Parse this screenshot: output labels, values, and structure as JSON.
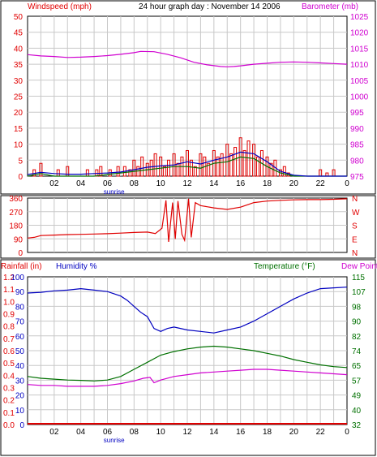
{
  "colors": {
    "red": "#e00000",
    "magenta": "#d000d0",
    "blue": "#0000c0",
    "green": "#007000",
    "black": "#000000",
    "grid": "#c8c8c8",
    "frame": "#000000"
  },
  "header": {
    "windspeed_label": "Windspeed (mph)",
    "title": "24 hour graph day : November 14 2006",
    "barometer_label": "Barometer (mb)"
  },
  "hours": [
    "02",
    "04",
    "06",
    "08",
    "10",
    "12",
    "14",
    "16",
    "18",
    "20",
    "22",
    "0"
  ],
  "sunrise_label": "sunrise",
  "chart_data": [
    {
      "type": "line",
      "title": "24 hour graph day : November 14 2006",
      "ylabel": "Windspeed (mph)",
      "ylabel_right": "Barometer (mb)",
      "y_ticks_left": [
        "0",
        "5",
        "10",
        "15",
        "20",
        "25",
        "30",
        "35",
        "40",
        "45",
        "50"
      ],
      "y_ticks_right": [
        "975",
        "980",
        "985",
        "990",
        "995",
        "1000",
        "1005",
        "1010",
        "1015",
        "1020",
        "1025"
      ],
      "ylim": [
        0,
        50
      ],
      "ylim_right": [
        975,
        1025
      ],
      "xlim": [
        0,
        24
      ],
      "grid": true,
      "series": [
        {
          "axis": "right",
          "color": "#d000d0",
          "x": [
            0,
            1,
            2,
            3,
            4,
            5,
            6,
            7,
            8,
            8.5,
            9.5,
            10.5,
            11.5,
            12.5,
            13.5,
            14.5,
            15,
            15.5,
            16,
            17,
            18,
            19,
            20,
            21,
            22,
            23,
            24
          ],
          "values": [
            1013,
            1012.6,
            1012.4,
            1012.1,
            1012.2,
            1012.4,
            1012.7,
            1013.1,
            1013.6,
            1014,
            1013.9,
            1013.1,
            1012,
            1010.6,
            1009.8,
            1009.3,
            1009.2,
            1009.3,
            1009.5,
            1010,
            1010.3,
            1010.6,
            1010.7,
            1010.6,
            1010.4,
            1010.2,
            1010
          ]
        },
        {
          "axis": "left",
          "color": "#e00000",
          "style": "bars",
          "x": [
            0.5,
            1.0,
            2.3,
            3.0,
            4.5,
            5.2,
            5.5,
            6.2,
            6.8,
            7.3,
            7.7,
            8.0,
            8.3,
            8.6,
            9.0,
            9.3,
            9.6,
            10.0,
            10.3,
            10.6,
            11.0,
            11.3,
            11.6,
            12.0,
            12.3,
            12.6,
            13.0,
            13.3,
            13.6,
            14.0,
            14.3,
            14.6,
            15.0,
            15.3,
            15.6,
            16.0,
            16.3,
            16.6,
            17.0,
            17.3,
            17.6,
            18.0,
            18.3,
            18.6,
            19.0,
            19.3,
            19.6,
            22.0,
            22.5,
            23.0
          ],
          "values": [
            2,
            4,
            2,
            3,
            2,
            2,
            3,
            2,
            3,
            3,
            2,
            5,
            3,
            6,
            4,
            5,
            7,
            6,
            3,
            5,
            7,
            4,
            6,
            8,
            5,
            3,
            7,
            6,
            4,
            8,
            6,
            7,
            10,
            7,
            9,
            12,
            8,
            11,
            10,
            6,
            8,
            6,
            4,
            5,
            2,
            3,
            1,
            2,
            1,
            2
          ]
        },
        {
          "axis": "left",
          "color": "#0000c0",
          "x": [
            0,
            1,
            2,
            3,
            4,
            5,
            6,
            7,
            8,
            9,
            10,
            11,
            12,
            13,
            14,
            15,
            16,
            17,
            18,
            19,
            20,
            21,
            22,
            23,
            24
          ],
          "values": [
            0.5,
            1.2,
            0.8,
            0.6,
            0.6,
            0.8,
            1,
            1.3,
            2,
            2.8,
            3.2,
            3.5,
            4.5,
            3.8,
            5,
            6,
            7.5,
            7,
            4.5,
            1.5,
            0.3,
            0,
            0,
            0,
            0
          ]
        },
        {
          "axis": "left",
          "color": "#007000",
          "x": [
            0,
            1,
            2,
            3,
            4,
            5,
            6,
            7,
            8,
            9,
            10,
            11,
            12,
            13,
            14,
            15,
            16,
            17,
            18,
            19,
            20,
            21,
            22,
            23,
            24
          ],
          "values": [
            0,
            0.8,
            0,
            0,
            0,
            0,
            0.5,
            1,
            1.5,
            2,
            2.5,
            3,
            3,
            2.5,
            4,
            4.5,
            6,
            5.5,
            3,
            1,
            0,
            0,
            0,
            0,
            0
          ]
        }
      ]
    },
    {
      "type": "line",
      "title": "",
      "y_ticks_left": [
        "0",
        "90",
        "180",
        "270",
        "360"
      ],
      "y_ticks_right": [
        "N",
        "E",
        "S",
        "W",
        "N"
      ],
      "ylim": [
        0,
        360
      ],
      "xlim": [
        0,
        24
      ],
      "grid": true,
      "series": [
        {
          "color": "#e00000",
          "x": [
            0,
            0.5,
            1,
            2,
            3,
            4,
            5,
            6,
            7,
            8,
            9,
            9.6,
            10.1,
            10.4,
            10.6,
            10.9,
            11.1,
            11.3,
            11.6,
            11.8,
            12.1,
            12.3,
            12.6,
            13,
            14,
            15,
            16,
            17,
            18,
            19,
            20,
            21,
            22,
            23,
            24
          ],
          "values": [
            95,
            100,
            112,
            115,
            118,
            120,
            122,
            124,
            128,
            132,
            135,
            125,
            160,
            345,
            70,
            330,
            90,
            340,
            120,
            80,
            355,
            100,
            330,
            310,
            295,
            285,
            300,
            330,
            340,
            345,
            348,
            350,
            350,
            352,
            355
          ]
        }
      ]
    },
    {
      "type": "line",
      "ylabel": "Rainfall (in)",
      "ylabel2": "Humidity %",
      "ylabel_right": "Temperature (°F)",
      "ylabel_right2": "Dew Point",
      "y_ticks_rain": [
        "0.0",
        "0.1",
        "0.2",
        "0.3",
        "0.4",
        "0.5",
        "0.6",
        "0.7",
        "0.8",
        "0.9",
        "1.0",
        "1.1",
        "1.2"
      ],
      "y_ticks_humidity": [
        "0",
        "10",
        "20",
        "30",
        "40",
        "50",
        "60",
        "70",
        "80",
        "90",
        "100"
      ],
      "y_ticks_temp": [
        "32",
        "40",
        "49",
        "57",
        "65",
        "74",
        "82",
        "90",
        "98",
        "107",
        "115"
      ],
      "ylim_humidity": [
        0,
        100
      ],
      "ylim_temp": [
        32,
        115
      ],
      "xlim": [
        0,
        24
      ],
      "grid": true,
      "series": [
        {
          "name": "Humidity %",
          "axis": "humidity",
          "color": "#0000c0",
          "x": [
            0,
            1,
            2,
            3,
            3.5,
            4,
            5,
            6,
            7,
            7.5,
            8,
            8.5,
            9,
            9.5,
            10,
            10.5,
            11,
            12,
            13,
            14,
            15,
            16,
            17,
            18,
            19,
            20,
            21,
            22,
            23,
            24
          ],
          "values": [
            89,
            89.5,
            90.5,
            91,
            91.5,
            92,
            91,
            90,
            87,
            84,
            80,
            76,
            73,
            65,
            63,
            65,
            66,
            64,
            63,
            62,
            64,
            66,
            70,
            75,
            80,
            85,
            89,
            92,
            92.5,
            93
          ]
        },
        {
          "name": "Temperature (°F)",
          "axis": "temp",
          "color": "#007000",
          "x": [
            0,
            1,
            2,
            3,
            4,
            5,
            6,
            7,
            8,
            9,
            10,
            11,
            12,
            13,
            14,
            15,
            16,
            17,
            18,
            19,
            20,
            21,
            22,
            23,
            24
          ],
          "values": [
            59,
            58,
            57.5,
            57,
            56.8,
            56.5,
            57,
            59,
            63,
            67,
            71,
            73,
            74.5,
            75.5,
            76,
            75.5,
            74.5,
            73.5,
            72,
            70.5,
            68.5,
            67,
            65.5,
            64.5,
            64
          ]
        },
        {
          "name": "Dew Point",
          "axis": "temp",
          "color": "#d000d0",
          "x": [
            0,
            1,
            2,
            3,
            4,
            5,
            6,
            7,
            8,
            8.7,
            9.2,
            9.5,
            10,
            11,
            12,
            13,
            14,
            15,
            16,
            17,
            18,
            19,
            20,
            21,
            22,
            23,
            24
          ],
          "values": [
            54.5,
            54,
            54,
            53.5,
            53.5,
            53.5,
            54,
            55,
            56.5,
            58,
            58.5,
            55.5,
            57,
            59,
            60,
            61,
            61.5,
            62,
            62.5,
            63,
            63,
            62.5,
            62,
            61.5,
            61,
            60.5,
            60
          ]
        },
        {
          "name": "Rainfall (in)",
          "axis": "rain",
          "color": "#e00000",
          "x": [
            0,
            24
          ],
          "values": [
            0.0,
            0.0
          ]
        }
      ]
    }
  ]
}
